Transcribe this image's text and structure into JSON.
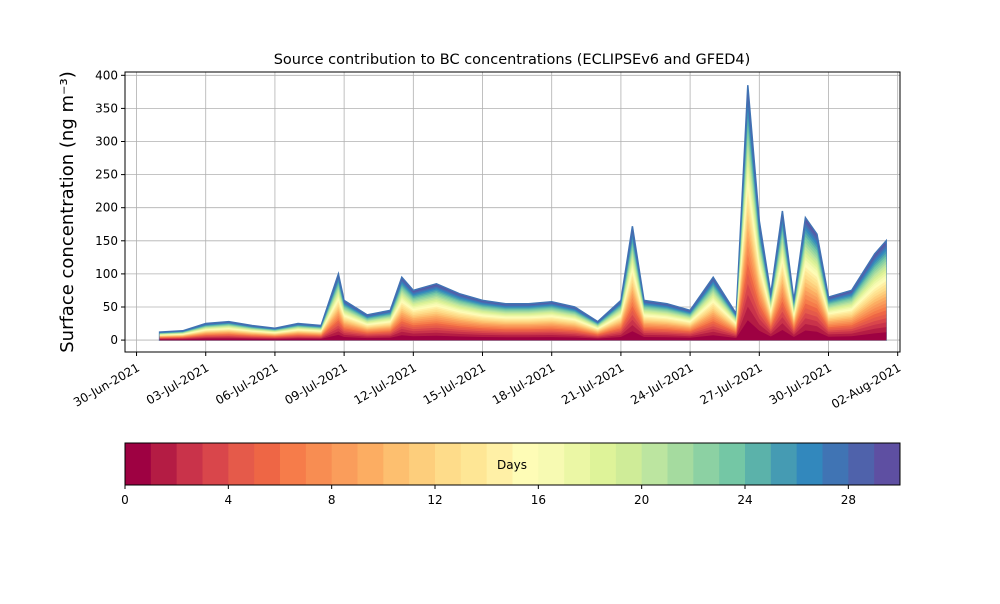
{
  "chart_data": {
    "type": "area",
    "title": "Source contribution to BC concentrations (ECLIPSEv6 and GFED4)",
    "ylabel": "Surface concentration (ng m⁻³)",
    "xlabel": "",
    "xlim": [
      "2021-06-30",
      "2021-08-02"
    ],
    "ylim": [
      0,
      400
    ],
    "grid": true,
    "x_tick_labels": [
      "30-Jun-2021",
      "03-Jul-2021",
      "06-Jul-2021",
      "09-Jul-2021",
      "12-Jul-2021",
      "15-Jul-2021",
      "18-Jul-2021",
      "21-Jul-2021",
      "24-Jul-2021",
      "27-Jul-2021",
      "30-Jul-2021",
      "02-Aug-2021"
    ],
    "y_tick_labels": [
      "0",
      "50",
      "100",
      "150",
      "200",
      "250",
      "300",
      "350",
      "400"
    ],
    "total_series": {
      "x": [
        "2021-07-01",
        "2021-07-02",
        "2021-07-03",
        "2021-07-04",
        "2021-07-05",
        "2021-07-06",
        "2021-07-07",
        "2021-07-08",
        "2021-07-08 18:00",
        "2021-07-09",
        "2021-07-10",
        "2021-07-11",
        "2021-07-11 12:00",
        "2021-07-12",
        "2021-07-13",
        "2021-07-14",
        "2021-07-15",
        "2021-07-16",
        "2021-07-17",
        "2021-07-18",
        "2021-07-19",
        "2021-07-20",
        "2021-07-21",
        "2021-07-21 12:00",
        "2021-07-22",
        "2021-07-23",
        "2021-07-24",
        "2021-07-25",
        "2021-07-26",
        "2021-07-26 12:00",
        "2021-07-27",
        "2021-07-27 12:00",
        "2021-07-28",
        "2021-07-28 12:00",
        "2021-07-29",
        "2021-07-29 12:00",
        "2021-07-30",
        "2021-07-31",
        "2021-08-01",
        "2021-08-01 12:00"
      ],
      "values": [
        12,
        14,
        25,
        28,
        22,
        18,
        25,
        22,
        100,
        60,
        38,
        45,
        95,
        75,
        85,
        70,
        60,
        55,
        55,
        58,
        50,
        28,
        60,
        172,
        60,
        55,
        45,
        95,
        40,
        385,
        180,
        70,
        195,
        60,
        185,
        160,
        65,
        75,
        130,
        150
      ]
    },
    "colorbar": {
      "label": "Days",
      "range": [
        0,
        30
      ],
      "tick_labels": [
        "0",
        "4",
        "8",
        "12",
        "16",
        "20",
        "24",
        "28"
      ],
      "colormap": "Spectral",
      "colors": [
        "#9e0142",
        "#b41c44",
        "#c9334a",
        "#d9464b",
        "#e55a4a",
        "#ee6645",
        "#f67c4a",
        "#f88d52",
        "#fa9d5b",
        "#fcad62",
        "#fdbf6f",
        "#fdce7c",
        "#fedc8a",
        "#fee695",
        "#fff0a6",
        "#fefcb6",
        "#f7fab2",
        "#ebf7a5",
        "#def399",
        "#cfec98",
        "#bce5a0",
        "#a5db9f",
        "#8cd1a3",
        "#74c7a5",
        "#5bb2aa",
        "#459bb3",
        "#3288bd",
        "#4074b4",
        "#4f62ab",
        "#5e4fa2"
      ]
    }
  }
}
